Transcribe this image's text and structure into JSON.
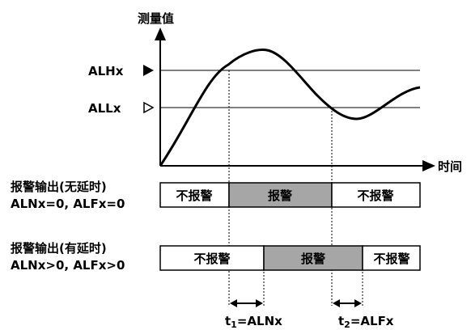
{
  "axes": {
    "y_label": "测量值",
    "x_label": "时间"
  },
  "levels": {
    "high_label": "ALHx",
    "low_label": "ALLx"
  },
  "row_no_delay": {
    "label_line1": "报警输出(无延时)",
    "label_line2": "ALNx=0, ALFx=0",
    "segments": [
      "不报警",
      "报警",
      "不报警"
    ]
  },
  "row_with_delay": {
    "label_line1": "报警输出(有延时)",
    "label_line2": "ALNx>0, ALFx>0",
    "segments": [
      "不报警",
      "报警",
      "不报警"
    ]
  },
  "delays": {
    "t1_prefix": "t",
    "t1_sub": "1",
    "t1_suffix": "=ALNx",
    "t2_prefix": "t",
    "t2_sub": "2",
    "t2_suffix": "=ALFx"
  },
  "colors": {
    "alarm_fill": "#a6a6a6",
    "normal_fill": "#ffffff",
    "stroke": "#000000"
  }
}
